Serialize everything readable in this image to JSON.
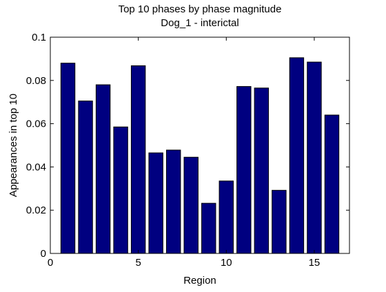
{
  "chart_data": {
    "type": "bar",
    "title": "Top 10 phases by phase magnitude",
    "subtitle": "Dog_1 - interictal",
    "xlabel": "Region",
    "ylabel": "Appearances in top 10",
    "x": [
      1,
      2,
      3,
      4,
      5,
      6,
      7,
      8,
      9,
      10,
      11,
      12,
      13,
      14,
      15,
      16
    ],
    "values": [
      0.088,
      0.0705,
      0.078,
      0.0585,
      0.0868,
      0.0465,
      0.0478,
      0.0445,
      0.0232,
      0.0335,
      0.0772,
      0.0765,
      0.0292,
      0.0905,
      0.0885,
      0.064
    ],
    "xlim": [
      0,
      17
    ],
    "ylim": [
      0,
      0.1
    ],
    "xticks": [
      0,
      5,
      10,
      15
    ],
    "xtick_labels": [
      "0",
      "5",
      "10",
      "15"
    ],
    "yticks": [
      0,
      0.02,
      0.04,
      0.06,
      0.08,
      0.1
    ],
    "ytick_labels": [
      "0",
      "0.02",
      "0.04",
      "0.06",
      "0.08",
      "0.1"
    ],
    "grid": false,
    "bar_color": "#000080",
    "bar_edge_color": "#000000"
  }
}
